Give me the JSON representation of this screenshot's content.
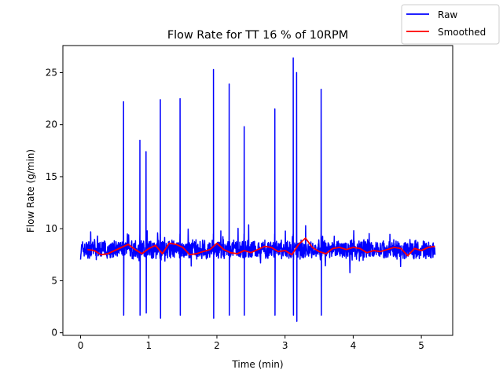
{
  "chart_data": {
    "type": "line",
    "title": "Flow Rate for TT 16 % of 10RPM",
    "xlabel": "Time (min)",
    "ylabel": "Flow Rate (g/min)",
    "xlim": [
      -0.26,
      5.46
    ],
    "ylim": [
      -0.25,
      27.6
    ],
    "xticks": [
      0,
      1,
      2,
      3,
      4,
      5
    ],
    "yticks": [
      0,
      5,
      10,
      15,
      20,
      25
    ],
    "grid": false,
    "legend_position": "top-right",
    "series": [
      {
        "name": "Raw",
        "color": "#0000ff",
        "baseline": 8.0,
        "noise": 1.0,
        "x_range": [
          0.0,
          5.2
        ],
        "spikes": [
          {
            "x": 0.63,
            "high": 22.2,
            "low": 1.7
          },
          {
            "x": 0.87,
            "high": 18.5,
            "low": 1.7
          },
          {
            "x": 0.96,
            "high": 17.4,
            "low": 1.9
          },
          {
            "x": 1.17,
            "high": 22.4,
            "low": 1.4
          },
          {
            "x": 1.46,
            "high": 22.5,
            "low": 1.7
          },
          {
            "x": 1.95,
            "high": 25.3,
            "low": 1.4
          },
          {
            "x": 2.18,
            "high": 23.9,
            "low": 1.7
          },
          {
            "x": 2.4,
            "high": 19.8,
            "low": 1.7
          },
          {
            "x": 2.85,
            "high": 21.5,
            "low": 1.7
          },
          {
            "x": 3.12,
            "high": 26.4,
            "low": 1.7
          },
          {
            "x": 3.17,
            "high": 25.0,
            "low": 1.1
          },
          {
            "x": 3.53,
            "high": 23.4,
            "low": 1.7
          }
        ]
      },
      {
        "name": "Smoothed",
        "color": "#ff0000",
        "x": [
          0.1,
          0.2,
          0.3,
          0.4,
          0.5,
          0.6,
          0.7,
          0.8,
          0.9,
          1.0,
          1.1,
          1.2,
          1.3,
          1.4,
          1.5,
          1.6,
          1.7,
          1.8,
          1.9,
          2.0,
          2.1,
          2.2,
          2.3,
          2.4,
          2.5,
          2.6,
          2.7,
          2.8,
          2.9,
          3.0,
          3.1,
          3.2,
          3.3,
          3.4,
          3.5,
          3.6,
          3.7,
          3.8,
          3.9,
          4.0,
          4.1,
          4.2,
          4.3,
          4.4,
          4.5,
          4.6,
          4.7,
          4.8,
          4.9,
          5.0,
          5.1,
          5.2
        ],
        "y": [
          8.0,
          7.9,
          7.5,
          7.6,
          7.9,
          8.2,
          8.5,
          8.0,
          7.6,
          8.1,
          8.4,
          7.6,
          8.6,
          8.5,
          8.2,
          7.5,
          7.6,
          7.8,
          8.0,
          8.6,
          8.0,
          7.7,
          7.6,
          7.9,
          7.7,
          8.0,
          8.3,
          8.2,
          7.8,
          7.9,
          7.5,
          8.5,
          9.1,
          8.2,
          7.8,
          7.6,
          8.1,
          8.2,
          8.0,
          8.2,
          8.1,
          7.7,
          7.9,
          7.8,
          8.0,
          8.2,
          8.1,
          7.4,
          8.1,
          7.9,
          8.2,
          8.3
        ]
      }
    ]
  }
}
